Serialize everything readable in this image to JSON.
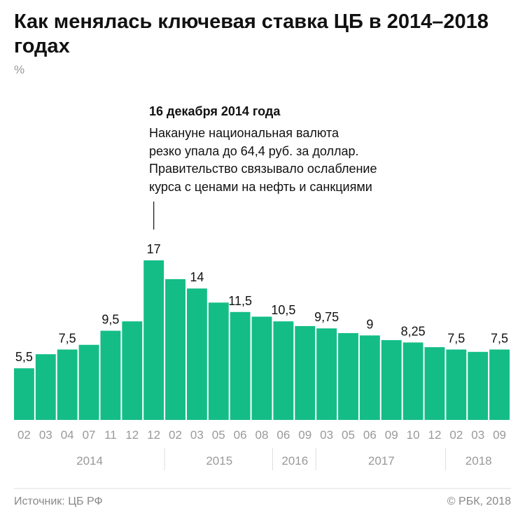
{
  "title": "Как менялась ключевая ставка ЦБ в 2014–2018 годах",
  "unit": "%",
  "annotation": {
    "title": "16 декабря 2014 года",
    "lines": [
      "Накануне национальная валюта",
      "резко упала до 64,4 руб. за доллар.",
      "Правительство связывало ослабление",
      "курса с ценами на нефть и санкциями"
    ]
  },
  "footer": {
    "source": "Источник: ЦБ РФ",
    "copyright": "© РБК, 2018"
  },
  "colors": {
    "bar": "#14bd86"
  },
  "chart_data": {
    "type": "bar",
    "categories": [
      "02",
      "03",
      "04",
      "07",
      "11",
      "12",
      "12",
      "02",
      "03",
      "05",
      "06",
      "08",
      "06",
      "09",
      "03",
      "05",
      "06",
      "09",
      "10",
      "12",
      "02",
      "03",
      "09"
    ],
    "values": [
      5.5,
      7,
      7.5,
      8,
      9.5,
      10.5,
      17,
      15,
      14,
      12.5,
      11.5,
      11,
      10.5,
      10,
      9.75,
      9.25,
      9,
      8.5,
      8.25,
      7.75,
      7.5,
      7.25,
      7.5
    ],
    "data_labels": {
      "0": "5,5",
      "2": "7,5",
      "4": "9,5",
      "6": "17",
      "8": "14",
      "10": "11,5",
      "12": "10,5",
      "14": "9,75",
      "16": "9",
      "18": "8,25",
      "20": "7,5",
      "22": "7,5"
    },
    "year_groups": [
      {
        "label": "2014",
        "count": 7
      },
      {
        "label": "2015",
        "count": 5
      },
      {
        "label": "2016",
        "count": 2
      },
      {
        "label": "2017",
        "count": 6
      },
      {
        "label": "2018",
        "count": 3
      }
    ],
    "ylim": [
      0,
      17
    ],
    "grid": false,
    "annotated_index": 6
  }
}
